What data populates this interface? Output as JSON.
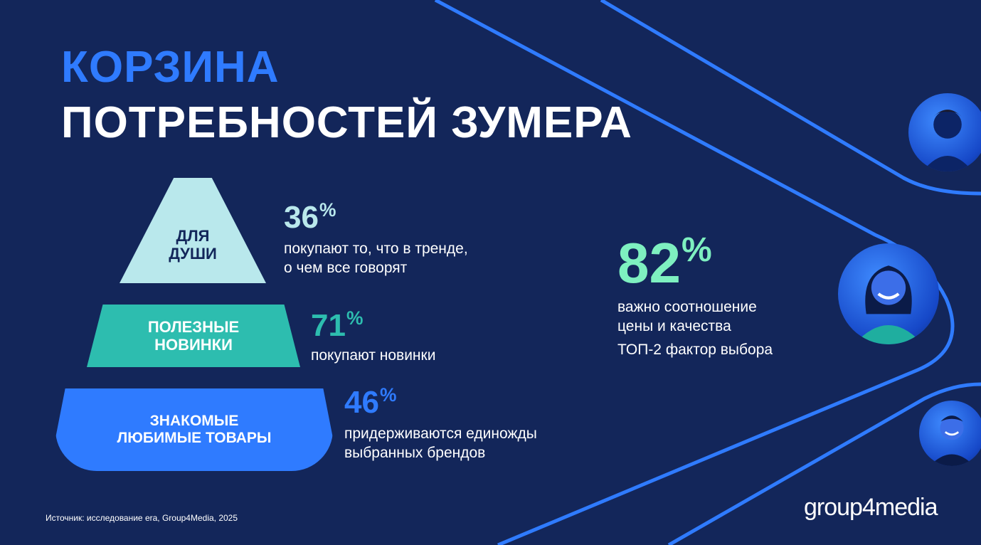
{
  "title": {
    "line1": "КОРЗИНА",
    "line2": "ПОТРЕБНОСТЕЙ ЗУМЕРА"
  },
  "pyramid": [
    {
      "label_line1": "ДЛЯ",
      "label_line2": "ДУШИ",
      "color": "#b9e8ec"
    },
    {
      "label_line1": "ПОЛЕЗНЫЕ",
      "label_line2": "НОВИНКИ",
      "color": "#2dbdaf"
    },
    {
      "label_line1": "ЗНАКОМЫЕ",
      "label_line2": "ЛЮБИМЫЕ ТОВАРЫ",
      "color": "#2f7bff"
    }
  ],
  "stats": [
    {
      "value": "36",
      "unit": "%",
      "desc_line1": "покупают то, что в тренде,",
      "desc_line2": "о чем все говорят"
    },
    {
      "value": "71",
      "unit": "%",
      "desc_line1": "покупают новинки"
    },
    {
      "value": "46",
      "unit": "%",
      "desc_line1": "придерживаются единожды",
      "desc_line2": "выбранных брендов"
    },
    {
      "value": "82",
      "unit": "%",
      "desc_line1": "важно соотношение",
      "desc_line2": "цены и качества",
      "extra": "ТОП-2 фактор выбора"
    }
  ],
  "source": "Источник: исследование era, Group4Media, 2025",
  "logo": "group4media",
  "colors": {
    "background": "#13265a",
    "accent_blue": "#2f7bff",
    "teal": "#2dbdaf",
    "light_teal": "#b9e8ec",
    "mint": "#7ef0c0"
  },
  "icons": [
    "person-avatar-icon"
  ]
}
